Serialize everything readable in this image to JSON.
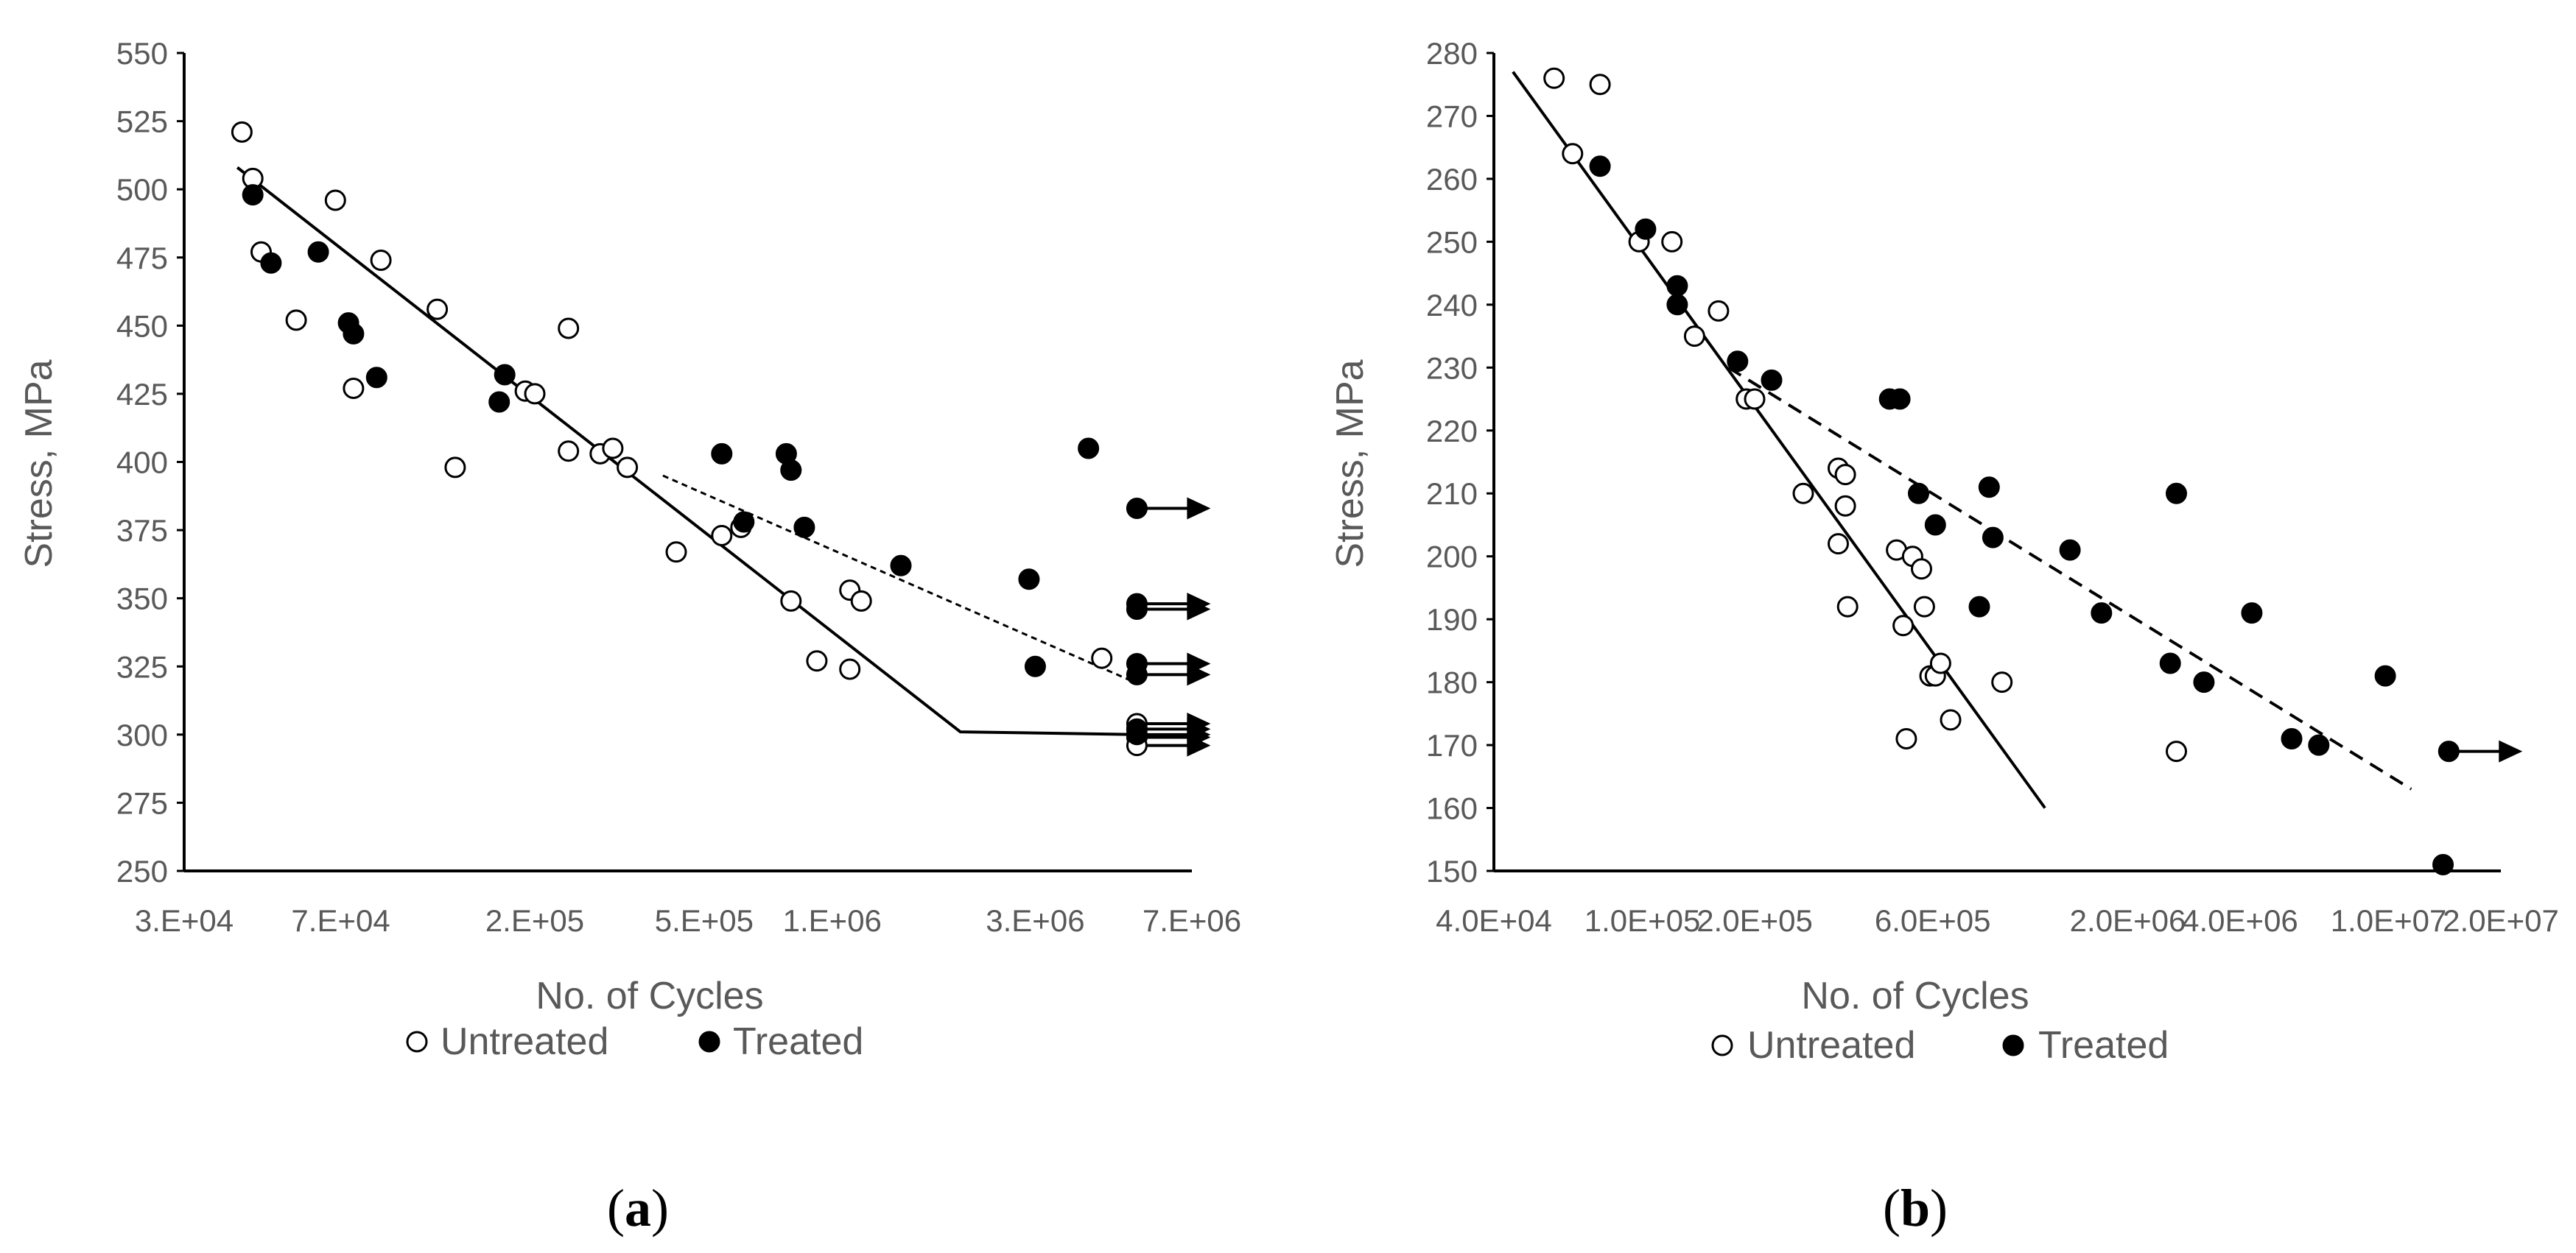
{
  "colors": {
    "axis": "#000000",
    "text": "#595959",
    "untreated_fill": "#ffffff",
    "treated_fill": "#000000",
    "line": "#000000"
  },
  "chart_data": [
    {
      "type": "scatter",
      "id": "a",
      "caption": {
        "open": "(",
        "label": "a",
        "close": ")"
      },
      "xlabel": "No. of Cycles",
      "ylabel": "Stress, MPa",
      "xscale": "log",
      "xlim": [
        30000,
        7000000
      ],
      "ylim": [
        250,
        550
      ],
      "x_tick_values": [
        30000,
        70000,
        200000,
        500000,
        1000000,
        3000000,
        7000000
      ],
      "x_tick_labels": [
        "3.E+04",
        "7.E+04",
        "2.E+05",
        "5.E+05",
        "1.E+06",
        "3.E+06",
        "7.E+06"
      ],
      "y_tick_values": [
        250,
        275,
        300,
        325,
        350,
        375,
        400,
        425,
        450,
        475,
        500,
        525,
        550
      ],
      "y_tick_labels": [
        "250",
        "275",
        "300",
        "325",
        "350",
        "375",
        "400",
        "425",
        "450",
        "475",
        "500",
        "525",
        "550"
      ],
      "legend": [
        "Untreated",
        "Treated"
      ],
      "legend_position": "bottom",
      "series": [
        {
          "name": "Untreated",
          "marker": "open-circle",
          "points": [
            [
              41000,
              521
            ],
            [
              43500,
              504
            ],
            [
              45500,
              477
            ],
            [
              55000,
              452
            ],
            [
              68000,
              496
            ],
            [
              75000,
              427
            ],
            [
              87000,
              474
            ],
            [
              118000,
              456
            ],
            [
              130000,
              398
            ],
            [
              190000,
              426
            ],
            [
              200000,
              425
            ],
            [
              240000,
              449
            ],
            [
              240000,
              404
            ],
            [
              285000,
              403
            ],
            [
              305000,
              405
            ],
            [
              330000,
              398
            ],
            [
              430000,
              367
            ],
            [
              550000,
              373
            ],
            [
              610000,
              376
            ],
            [
              800000,
              349
            ],
            [
              920000,
              327
            ],
            [
              1100000,
              353
            ],
            [
              1170000,
              349
            ],
            [
              1100000,
              324
            ],
            [
              4300000,
              328
            ],
            [
              5200000,
              304
            ],
            [
              5200000,
              302
            ],
            [
              5200000,
              299
            ],
            [
              5200000,
              296
            ]
          ]
        },
        {
          "name": "Treated",
          "marker": "filled-circle",
          "points": [
            [
              43500,
              498
            ],
            [
              48000,
              473
            ],
            [
              62000,
              477
            ],
            [
              73000,
              451
            ],
            [
              75000,
              447
            ],
            [
              85000,
              431
            ],
            [
              170000,
              432
            ],
            [
              165000,
              422
            ],
            [
              550000,
              403
            ],
            [
              620000,
              378
            ],
            [
              780000,
              403
            ],
            [
              800000,
              397
            ],
            [
              860000,
              376
            ],
            [
              1450000,
              362
            ],
            [
              2900000,
              357
            ],
            [
              3000000,
              325
            ],
            [
              4000000,
              405
            ],
            [
              5200000,
              383
            ],
            [
              5200000,
              348
            ],
            [
              5200000,
              346
            ],
            [
              5200000,
              326
            ],
            [
              5200000,
              322
            ],
            [
              5200000,
              302
            ],
            [
              5200000,
              300
            ]
          ]
        }
      ],
      "runouts": [
        {
          "x": 5200000,
          "y": 383
        },
        {
          "x": 5200000,
          "y": 348
        },
        {
          "x": 5200000,
          "y": 346
        },
        {
          "x": 5200000,
          "y": 326
        },
        {
          "x": 5200000,
          "y": 322
        },
        {
          "x": 5200000,
          "y": 304
        },
        {
          "x": 5200000,
          "y": 302
        },
        {
          "x": 5200000,
          "y": 300
        },
        {
          "x": 5200000,
          "y": 299
        },
        {
          "x": 5200000,
          "y": 296
        }
      ],
      "fit_lines": [
        {
          "name": "Untreated fit",
          "style": "solid",
          "points": [
            [
              40000,
              508
            ],
            [
              2000000,
              301
            ],
            [
              5200000,
              300
            ]
          ]
        },
        {
          "name": "Treated fit",
          "style": "dotted",
          "points": [
            [
              400000,
              395
            ],
            [
              5000000,
              320
            ]
          ]
        }
      ]
    },
    {
      "type": "scatter",
      "id": "b",
      "caption": {
        "open": "(",
        "label": "b",
        "close": ")"
      },
      "xlabel": "No. of Cycles",
      "ylabel": "Stress, MPa",
      "xscale": "log",
      "xlim": [
        40000,
        20000000
      ],
      "ylim": [
        150,
        280
      ],
      "x_tick_values": [
        40000,
        100000,
        200000,
        600000,
        2000000,
        4000000,
        10000000,
        20000000
      ],
      "x_tick_labels": [
        "4.0E+04",
        "1.0E+05",
        "2.0E+05",
        "6.0E+05",
        "2.0E+06",
        "4.0E+06",
        "1.0E+07",
        "2.0E+07"
      ],
      "y_tick_values": [
        150,
        160,
        170,
        180,
        190,
        200,
        210,
        220,
        230,
        240,
        250,
        260,
        270,
        280
      ],
      "y_tick_labels": [
        "150",
        "160",
        "170",
        "180",
        "190",
        "200",
        "210",
        "220",
        "230",
        "240",
        "250",
        "260",
        "270",
        "280"
      ],
      "legend": [
        "Untreated",
        "Treated"
      ],
      "legend_position": "bottom",
      "series": [
        {
          "name": "Untreated",
          "marker": "open-circle",
          "points": [
            [
              58000,
              276
            ],
            [
              65000,
              264
            ],
            [
              77000,
              275
            ],
            [
              98000,
              250
            ],
            [
              120000,
              250
            ],
            [
              138000,
              235
            ],
            [
              160000,
              239
            ],
            [
              190000,
              225
            ],
            [
              200000,
              225
            ],
            [
              270000,
              210
            ],
            [
              335000,
              214
            ],
            [
              350000,
              213
            ],
            [
              335000,
              202
            ],
            [
              355000,
              192
            ],
            [
              350000,
              208
            ],
            [
              480000,
              201
            ],
            [
              530000,
              200
            ],
            [
              560000,
              198
            ],
            [
              570000,
              192
            ],
            [
              500000,
              189
            ],
            [
              510000,
              171
            ],
            [
              590000,
              181
            ],
            [
              610000,
              181
            ],
            [
              630000,
              183
            ],
            [
              670000,
              174
            ],
            [
              920000,
              180
            ],
            [
              2700000,
              169
            ]
          ]
        },
        {
          "name": "Treated",
          "marker": "filled-circle",
          "points": [
            [
              77000,
              262
            ],
            [
              102000,
              252
            ],
            [
              124000,
              243
            ],
            [
              124000,
              240
            ],
            [
              180000,
              231
            ],
            [
              222000,
              228
            ],
            [
              460000,
              225
            ],
            [
              490000,
              225
            ],
            [
              550000,
              210
            ],
            [
              610000,
              205
            ],
            [
              800000,
              192
            ],
            [
              850000,
              211
            ],
            [
              870000,
              203
            ],
            [
              1400000,
              201
            ],
            [
              1700000,
              191
            ],
            [
              2600000,
              183
            ],
            [
              2700000,
              210
            ],
            [
              3200000,
              180
            ],
            [
              4300000,
              191
            ],
            [
              5500000,
              171
            ],
            [
              6500000,
              170
            ],
            [
              9800000,
              181
            ],
            [
              14000000,
              151
            ],
            [
              14500000,
              169
            ]
          ]
        }
      ],
      "runouts": [
        {
          "x": 14500000,
          "y": 169
        }
      ],
      "fit_lines": [
        {
          "name": "Untreated fit",
          "style": "solid",
          "points": [
            [
              45000,
              277
            ],
            [
              1200000,
              160
            ]
          ]
        },
        {
          "name": "Treated fit",
          "style": "dashed",
          "points": [
            [
              170000,
              230
            ],
            [
              11500000,
              163
            ]
          ]
        }
      ]
    }
  ]
}
